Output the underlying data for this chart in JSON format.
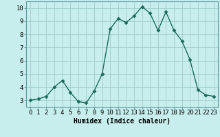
{
  "x": [
    0,
    1,
    2,
    3,
    4,
    5,
    6,
    7,
    8,
    9,
    10,
    11,
    12,
    13,
    14,
    15,
    16,
    17,
    18,
    19,
    20,
    21,
    22,
    23
  ],
  "y": [
    3.0,
    3.1,
    3.3,
    4.0,
    4.5,
    3.6,
    2.9,
    2.8,
    3.7,
    5.0,
    8.4,
    9.2,
    8.9,
    9.4,
    10.1,
    9.6,
    8.3,
    9.7,
    8.3,
    7.5,
    6.1,
    3.8,
    3.4,
    3.3
  ],
  "line_color": "#1a6b5a",
  "marker": "D",
  "marker_size": 2.5,
  "bg_color": "#c8eded",
  "grid_color": "#a0cccc",
  "xlabel": "Humidex (Indice chaleur)",
  "xlim": [
    -0.5,
    23.5
  ],
  "ylim": [
    2.5,
    10.5
  ],
  "yticks": [
    3,
    4,
    5,
    6,
    7,
    8,
    9,
    10
  ],
  "xticks": [
    0,
    1,
    2,
    3,
    4,
    5,
    6,
    7,
    8,
    9,
    10,
    11,
    12,
    13,
    14,
    15,
    16,
    17,
    18,
    19,
    20,
    21,
    22,
    23
  ],
  "xlabel_fontsize": 7,
  "tick_fontsize": 6.5,
  "line_width": 1.0
}
